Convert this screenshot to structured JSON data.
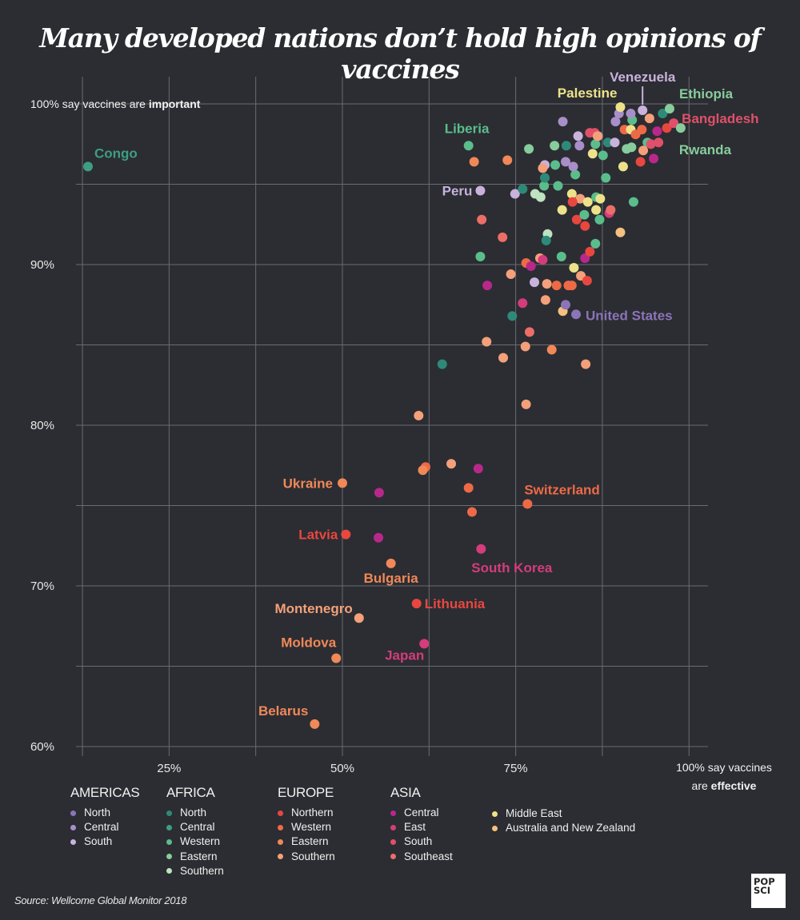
{
  "title": "Many developed nations don’t hold high opinions of vaccines",
  "source": "Source: Wellcome Global Monitor 2018",
  "logo": {
    "line1": "POP",
    "line2": "SCI"
  },
  "chart_data": {
    "type": "scatter",
    "title": "Many developed nations don’t hold high opinions of vaccines",
    "xlabel": "100% say vaccines are effective",
    "ylabel": "100% say vaccines are important",
    "xlabel_parts": {
      "line1": "100% say vaccines",
      "line2_pre": "are ",
      "line2_bold": "effective"
    },
    "ylabel_parts": {
      "pre": "100% say vaccines are ",
      "bold": "important"
    },
    "xlim": [
      11,
      100
    ],
    "ylim": [
      60,
      100
    ],
    "x_ticks": [
      {
        "value": 25,
        "label": "25%"
      },
      {
        "value": 50,
        "label": "50%"
      },
      {
        "value": 75,
        "label": "75%"
      }
    ],
    "x_grid": [
      12.5,
      25,
      37.5,
      50,
      62.5,
      75,
      87.5,
      100
    ],
    "y_ticks": [
      {
        "value": 60,
        "label": "60%"
      },
      {
        "value": 70,
        "label": "70%"
      },
      {
        "value": 80,
        "label": "80%"
      },
      {
        "value": 90,
        "label": "90%"
      }
    ],
    "y_grid": [
      60,
      65,
      70,
      75,
      80,
      85,
      90,
      95,
      100
    ],
    "grid": true,
    "legend_position": "bottom",
    "legend": [
      {
        "group": "AMERICAS",
        "items": [
          {
            "key": "am-north",
            "label": "North",
            "color": "#8c74b8"
          },
          {
            "key": "am-central",
            "label": "Central",
            "color": "#a88fc9"
          },
          {
            "key": "am-south",
            "label": "South",
            "color": "#c9b2dc"
          }
        ]
      },
      {
        "group": "AFRICA",
        "items": [
          {
            "key": "af-north",
            "label": "North",
            "color": "#2e8a78"
          },
          {
            "key": "af-central",
            "label": "Central",
            "color": "#3d9e82"
          },
          {
            "key": "af-western",
            "label": "Western",
            "color": "#5bbd8c"
          },
          {
            "key": "af-eastern",
            "label": "Eastern",
            "color": "#87cc9c"
          },
          {
            "key": "af-southern",
            "label": "Southern",
            "color": "#bde3c0"
          }
        ]
      },
      {
        "group": "EUROPE",
        "items": [
          {
            "key": "eu-northern",
            "label": "Northern",
            "color": "#e8473f"
          },
          {
            "key": "eu-western",
            "label": "Western",
            "color": "#ee6a47"
          },
          {
            "key": "eu-eastern",
            "label": "Eastern",
            "color": "#f08858"
          },
          {
            "key": "eu-southern",
            "label": "Southern",
            "color": "#f4a07a"
          }
        ]
      },
      {
        "group": "ASIA",
        "items": [
          {
            "key": "as-central",
            "label": "Central",
            "color": "#b8288a"
          },
          {
            "key": "as-east",
            "label": "East",
            "color": "#d43c7c"
          },
          {
            "key": "as-south",
            "label": "South",
            "color": "#e0506a"
          },
          {
            "key": "as-southeast",
            "label": "Southeast",
            "color": "#ec6e68"
          }
        ]
      },
      {
        "group": "",
        "items": [
          {
            "key": "middle-east",
            "label": "Middle East",
            "color": "#ede28a"
          },
          {
            "key": "anz",
            "label": "Australia and New Zealand",
            "color": "#f5c080"
          }
        ]
      }
    ],
    "labeled_points": [
      {
        "name": "Congo",
        "region": "af-central",
        "x": 13.3,
        "y": 96.1
      },
      {
        "name": "Liberia",
        "region": "af-western",
        "x": 68.2,
        "y": 97.4
      },
      {
        "name": "Peru",
        "region": "am-south",
        "x": 69.9,
        "y": 94.6
      },
      {
        "name": "Palestine",
        "region": "middle-east",
        "x": 90.1,
        "y": 99.8
      },
      {
        "name": "Venezuela",
        "region": "am-south",
        "x": 93.3,
        "y": 99.6
      },
      {
        "name": "Ethiopia",
        "region": "af-eastern",
        "x": 97.2,
        "y": 99.7
      },
      {
        "name": "Bangladesh",
        "region": "as-south",
        "x": 97.8,
        "y": 98.8
      },
      {
        "name": "Rwanda",
        "region": "af-eastern",
        "x": 98.8,
        "y": 98.5
      },
      {
        "name": "United States",
        "region": "am-north",
        "x": 83.7,
        "y": 86.9
      },
      {
        "name": "Ukraine",
        "region": "eu-eastern",
        "x": 50.0,
        "y": 76.4
      },
      {
        "name": "Switzerland",
        "region": "eu-western",
        "x": 76.7,
        "y": 75.1
      },
      {
        "name": "Latvia",
        "region": "eu-northern",
        "x": 50.5,
        "y": 73.2
      },
      {
        "name": "South Korea",
        "region": "as-east",
        "x": 70.0,
        "y": 72.3
      },
      {
        "name": "Bulgaria",
        "region": "eu-eastern",
        "x": 57.0,
        "y": 71.4
      },
      {
        "name": "Lithuania",
        "region": "eu-northern",
        "x": 60.7,
        "y": 68.9
      },
      {
        "name": "Montenegro",
        "region": "eu-southern",
        "x": 52.4,
        "y": 68.0
      },
      {
        "name": "Japan",
        "region": "as-east",
        "x": 61.8,
        "y": 66.4
      },
      {
        "name": "Moldova",
        "region": "eu-eastern",
        "x": 49.1,
        "y": 65.5
      },
      {
        "name": "Belarus",
        "region": "eu-eastern",
        "x": 46.0,
        "y": 61.4
      }
    ],
    "points": [
      {
        "region": "eu-southern",
        "x": 61.0,
        "y": 80.6
      },
      {
        "region": "eu-western",
        "x": 62.0,
        "y": 77.4
      },
      {
        "region": "eu-eastern",
        "x": 61.6,
        "y": 77.2
      },
      {
        "region": "eu-southern",
        "x": 65.7,
        "y": 77.6
      },
      {
        "region": "as-central",
        "x": 69.6,
        "y": 77.3
      },
      {
        "region": "as-central",
        "x": 55.3,
        "y": 75.8
      },
      {
        "region": "eu-western",
        "x": 68.2,
        "y": 76.1
      },
      {
        "region": "eu-western",
        "x": 68.7,
        "y": 74.6
      },
      {
        "region": "as-central",
        "x": 55.2,
        "y": 73.0
      },
      {
        "region": "af-north",
        "x": 64.4,
        "y": 83.8
      },
      {
        "region": "eu-southern",
        "x": 76.5,
        "y": 81.3
      },
      {
        "region": "eu-southern",
        "x": 70.8,
        "y": 85.2
      },
      {
        "region": "eu-southern",
        "x": 73.2,
        "y": 84.2
      },
      {
        "region": "eu-southern",
        "x": 76.4,
        "y": 84.9
      },
      {
        "region": "eu-eastern",
        "x": 80.2,
        "y": 84.7
      },
      {
        "region": "eu-southern",
        "x": 85.1,
        "y": 83.8
      },
      {
        "region": "as-southeast",
        "x": 77.0,
        "y": 85.8
      },
      {
        "region": "af-north",
        "x": 74.5,
        "y": 86.8
      },
      {
        "region": "as-east",
        "x": 76.0,
        "y": 87.6
      },
      {
        "region": "eu-southern",
        "x": 79.3,
        "y": 87.8
      },
      {
        "region": "anz",
        "x": 81.8,
        "y": 87.1
      },
      {
        "region": "am-north",
        "x": 82.2,
        "y": 87.5
      },
      {
        "region": "as-central",
        "x": 70.9,
        "y": 88.7
      },
      {
        "region": "am-south",
        "x": 77.7,
        "y": 88.9
      },
      {
        "region": "eu-southern",
        "x": 74.3,
        "y": 89.4
      },
      {
        "region": "eu-southern",
        "x": 79.5,
        "y": 88.8
      },
      {
        "region": "eu-western",
        "x": 80.9,
        "y": 88.7
      },
      {
        "region": "eu-western",
        "x": 82.6,
        "y": 88.7
      },
      {
        "region": "eu-western",
        "x": 83.1,
        "y": 88.7
      },
      {
        "region": "eu-southern",
        "x": 84.4,
        "y": 89.3
      },
      {
        "region": "eu-northern",
        "x": 85.3,
        "y": 89.0
      },
      {
        "region": "middle-east",
        "x": 83.4,
        "y": 89.8
      },
      {
        "region": "eu-western",
        "x": 76.5,
        "y": 90.1
      },
      {
        "region": "eu-southern",
        "x": 78.5,
        "y": 90.4
      },
      {
        "region": "as-east",
        "x": 78.9,
        "y": 90.3
      },
      {
        "region": "as-central",
        "x": 77.2,
        "y": 89.9
      },
      {
        "region": "af-western",
        "x": 69.9,
        "y": 90.5
      },
      {
        "region": "af-western",
        "x": 81.6,
        "y": 90.5
      },
      {
        "region": "as-central",
        "x": 85.0,
        "y": 90.4
      },
      {
        "region": "eu-northern",
        "x": 85.7,
        "y": 90.8
      },
      {
        "region": "af-western",
        "x": 86.5,
        "y": 91.3
      },
      {
        "region": "as-southeast",
        "x": 73.1,
        "y": 91.7
      },
      {
        "region": "af-southern",
        "x": 79.6,
        "y": 91.9
      },
      {
        "region": "af-north",
        "x": 79.4,
        "y": 91.5
      },
      {
        "region": "anz",
        "x": 90.1,
        "y": 92.0
      },
      {
        "region": "as-southeast",
        "x": 70.1,
        "y": 92.8
      },
      {
        "region": "middle-east",
        "x": 81.7,
        "y": 93.4
      },
      {
        "region": "eu-northern",
        "x": 83.8,
        "y": 92.8
      },
      {
        "region": "eu-northern",
        "x": 85.0,
        "y": 92.4
      },
      {
        "region": "af-western",
        "x": 84.9,
        "y": 93.1
      },
      {
        "region": "af-western",
        "x": 87.1,
        "y": 92.8
      },
      {
        "region": "as-east",
        "x": 88.5,
        "y": 93.2
      },
      {
        "region": "as-southeast",
        "x": 88.7,
        "y": 93.4
      },
      {
        "region": "af-western",
        "x": 92.0,
        "y": 93.9
      },
      {
        "region": "middle-east",
        "x": 83.1,
        "y": 94.4
      },
      {
        "region": "eu-southern",
        "x": 84.3,
        "y": 94.1
      },
      {
        "region": "middle-east",
        "x": 85.4,
        "y": 93.9
      },
      {
        "region": "middle-east",
        "x": 86.6,
        "y": 93.4
      },
      {
        "region": "eu-northern",
        "x": 83.2,
        "y": 93.9
      },
      {
        "region": "af-western",
        "x": 86.6,
        "y": 94.2
      },
      {
        "region": "middle-east",
        "x": 87.2,
        "y": 94.1
      },
      {
        "region": "am-south",
        "x": 74.9,
        "y": 94.4
      },
      {
        "region": "af-north",
        "x": 76.0,
        "y": 94.7
      },
      {
        "region": "af-southern",
        "x": 77.8,
        "y": 94.4
      },
      {
        "region": "af-southern",
        "x": 78.6,
        "y": 94.2
      },
      {
        "region": "af-western",
        "x": 79.1,
        "y": 94.9
      },
      {
        "region": "af-western",
        "x": 81.1,
        "y": 94.9
      },
      {
        "region": "af-north",
        "x": 79.2,
        "y": 95.4
      },
      {
        "region": "af-western",
        "x": 83.6,
        "y": 95.6
      },
      {
        "region": "af-western",
        "x": 88.0,
        "y": 95.4
      },
      {
        "region": "eu-eastern",
        "x": 69.0,
        "y": 96.4
      },
      {
        "region": "eu-eastern",
        "x": 73.8,
        "y": 96.5
      },
      {
        "region": "am-south",
        "x": 79.2,
        "y": 96.2
      },
      {
        "region": "eu-southern",
        "x": 78.9,
        "y": 96.0
      },
      {
        "region": "af-western",
        "x": 80.7,
        "y": 96.2
      },
      {
        "region": "am-central",
        "x": 82.2,
        "y": 96.4
      },
      {
        "region": "am-central",
        "x": 83.3,
        "y": 96.1
      },
      {
        "region": "eu-northern",
        "x": 93.0,
        "y": 96.4
      },
      {
        "region": "as-central",
        "x": 94.9,
        "y": 96.6
      },
      {
        "region": "middle-east",
        "x": 90.5,
        "y": 96.1
      },
      {
        "region": "af-eastern",
        "x": 76.9,
        "y": 97.2
      },
      {
        "region": "af-eastern",
        "x": 80.6,
        "y": 97.4
      },
      {
        "region": "af-north",
        "x": 82.3,
        "y": 97.4
      },
      {
        "region": "am-central",
        "x": 84.2,
        "y": 97.4
      },
      {
        "region": "af-western",
        "x": 86.5,
        "y": 97.5
      },
      {
        "region": "middle-east",
        "x": 86.1,
        "y": 96.9
      },
      {
        "region": "af-western",
        "x": 87.6,
        "y": 96.8
      },
      {
        "region": "af-north",
        "x": 88.3,
        "y": 97.6
      },
      {
        "region": "am-south",
        "x": 89.3,
        "y": 97.6
      },
      {
        "region": "af-eastern",
        "x": 91.0,
        "y": 97.2
      },
      {
        "region": "af-eastern",
        "x": 91.7,
        "y": 97.3
      },
      {
        "region": "af-western",
        "x": 94.0,
        "y": 97.6
      },
      {
        "region": "as-south",
        "x": 94.5,
        "y": 97.5
      },
      {
        "region": "as-south",
        "x": 95.6,
        "y": 97.6
      },
      {
        "region": "am-south",
        "x": 84.0,
        "y": 98.0
      },
      {
        "region": "am-central",
        "x": 86.9,
        "y": 98.0
      },
      {
        "region": "as-south",
        "x": 85.7,
        "y": 98.2
      },
      {
        "region": "as-south",
        "x": 86.4,
        "y": 98.2
      },
      {
        "region": "eu-southern",
        "x": 86.8,
        "y": 98.0
      },
      {
        "region": "eu-western",
        "x": 90.7,
        "y": 98.4
      },
      {
        "region": "middle-east",
        "x": 91.6,
        "y": 98.4
      },
      {
        "region": "eu-western",
        "x": 92.3,
        "y": 98.1
      },
      {
        "region": "eu-western",
        "x": 93.2,
        "y": 98.4
      },
      {
        "region": "eu-southern",
        "x": 93.4,
        "y": 97.1
      },
      {
        "region": "as-central",
        "x": 95.4,
        "y": 98.3
      },
      {
        "region": "eu-northern",
        "x": 96.8,
        "y": 98.5
      },
      {
        "region": "eu-southern",
        "x": 94.3,
        "y": 99.1
      },
      {
        "region": "am-central",
        "x": 81.8,
        "y": 98.9
      },
      {
        "region": "am-central",
        "x": 89.4,
        "y": 98.9
      },
      {
        "region": "af-western",
        "x": 91.8,
        "y": 99.0
      },
      {
        "region": "am-central",
        "x": 89.9,
        "y": 99.4
      },
      {
        "region": "am-central",
        "x": 91.6,
        "y": 99.4
      },
      {
        "region": "af-north",
        "x": 96.2,
        "y": 99.4
      }
    ]
  }
}
